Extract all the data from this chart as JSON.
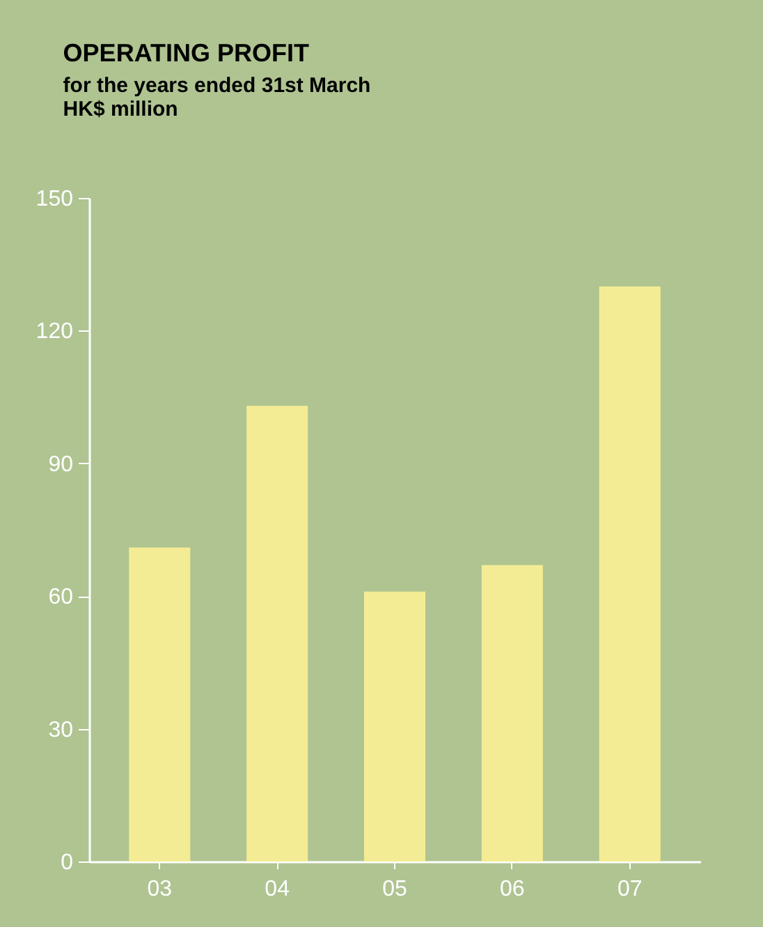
{
  "chart_data": {
    "type": "bar",
    "title": "OPERATING PROFIT",
    "subtitle": [
      "for the years ended 31st March",
      "HK$ million"
    ],
    "categories": [
      "03",
      "04",
      "05",
      "06",
      "07"
    ],
    "values": [
      71,
      103,
      61,
      67,
      130
    ],
    "color": "#f4ec94",
    "ylim": [
      0,
      150
    ],
    "yticks": [
      0,
      30,
      60,
      90,
      120,
      150
    ]
  }
}
